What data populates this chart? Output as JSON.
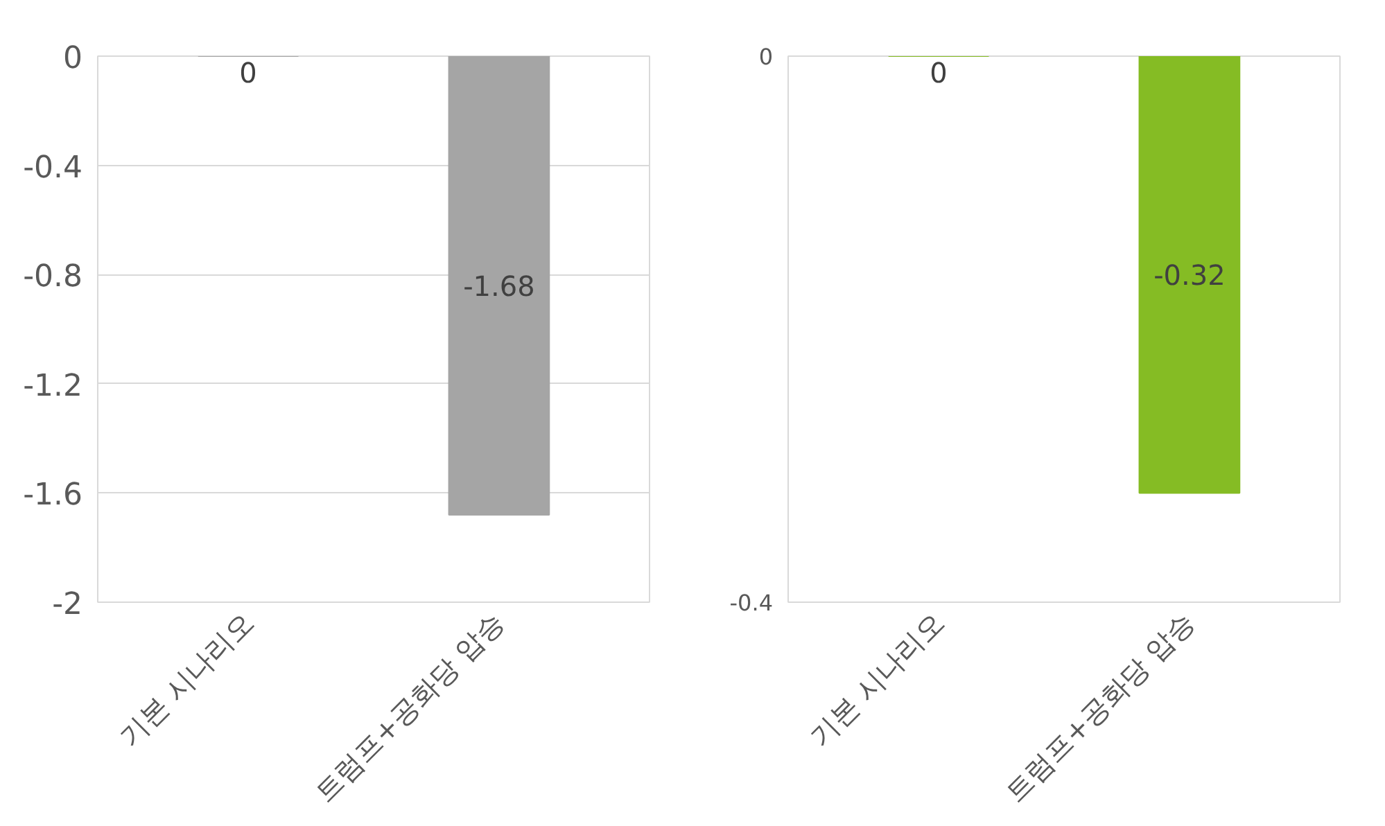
{
  "chart_data": [
    {
      "type": "bar",
      "categories": [
        "기본 시나리오",
        "트럼프+공화당 압승"
      ],
      "values": [
        0,
        -1.68
      ],
      "color": "#a5a5a5",
      "ylim": [
        -2,
        0
      ],
      "yticks": [
        0,
        -0.4,
        -0.8,
        -1.2,
        -1.6,
        -2
      ],
      "grid": "y",
      "data_labels": true
    },
    {
      "type": "bar",
      "categories": [
        "기본 시나리오",
        "트럼프+공화당 압승"
      ],
      "values": [
        0,
        -0.32
      ],
      "color": "#85bc24",
      "ylim": [
        -0.4,
        0
      ],
      "yticks": [
        0,
        -0.4
      ],
      "grid": "y",
      "data_labels": true
    }
  ]
}
